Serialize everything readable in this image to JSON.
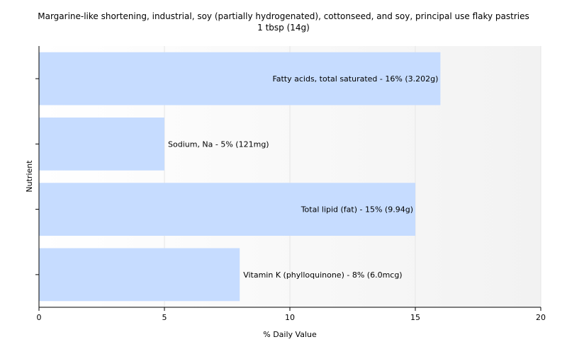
{
  "chart_data": {
    "type": "bar",
    "orientation": "horizontal",
    "title": "Margarine-like shortening, industrial, soy (partially hydrogenated), cottonseed, and soy, principal use flaky pastries",
    "subtitle": "1 tbsp (14g)",
    "xlabel": "% Daily Value",
    "ylabel": "Nutrient",
    "xlim": [
      0,
      20
    ],
    "xticks": [
      0,
      5,
      10,
      15,
      20
    ],
    "grid": true,
    "colors": {
      "bar": "#c6dcff",
      "grid": "#e6e6e6",
      "axis": "#000000"
    },
    "categories": [
      "Fatty acids, total saturated",
      "Sodium, Na",
      "Total lipid (fat)",
      "Vitamin K (phylloquinone)"
    ],
    "values": [
      16,
      5,
      15,
      8
    ],
    "labels": [
      "Fatty acids, total saturated - 16% (3.202g)",
      "Sodium, Na - 5% (121mg)",
      "Total lipid (fat) - 15% (9.94g)",
      "Vitamin K (phylloquinone) - 8% (6.0mcg)"
    ]
  }
}
